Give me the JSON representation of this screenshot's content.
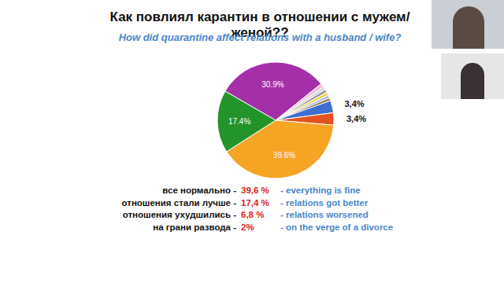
{
  "chart_data": {
    "type": "pie",
    "title": "Как повлиял карантин в отношении с мужем/женой??",
    "subtitle": "How did quarantine affect relations with a husband / wife?",
    "values": [
      30.9,
      1.0,
      0.9,
      0.9,
      0.9,
      0.8,
      0.8,
      3.4,
      3.4,
      39.6,
      17.4
    ],
    "value_labels": [
      "30.9%",
      null,
      null,
      null,
      null,
      null,
      null,
      "3,4%",
      "3,4%",
      "39.6%",
      "17.4%"
    ],
    "colors": [
      "#a52fa8",
      "#f2b8d8",
      "#d9d9d9",
      "#9a9a9a",
      "#f2d14b",
      "#9cc3e6",
      "#a0704a",
      "#3c6fd1",
      "#e5531f",
      "#f5a424",
      "#23942a"
    ],
    "data_labels": true,
    "annotations": [
      {
        "text": "все нормально -",
        "value": 39.6,
        "value_label": "39,6 %",
        "translation": "- everything is fine"
      },
      {
        "text": "отношения стали лучше -",
        "value": 17.4,
        "value_label": "17,4 %",
        "translation": "- relations got better"
      },
      {
        "text": "отношения ухудшились -",
        "value": 6.8,
        "value_label": "6,8 %",
        "translation": "- relations worsened"
      },
      {
        "text": "на грани развода -",
        "value": 2,
        "value_label": "2%",
        "translation": "- on the verge of a divorce"
      }
    ]
  }
}
